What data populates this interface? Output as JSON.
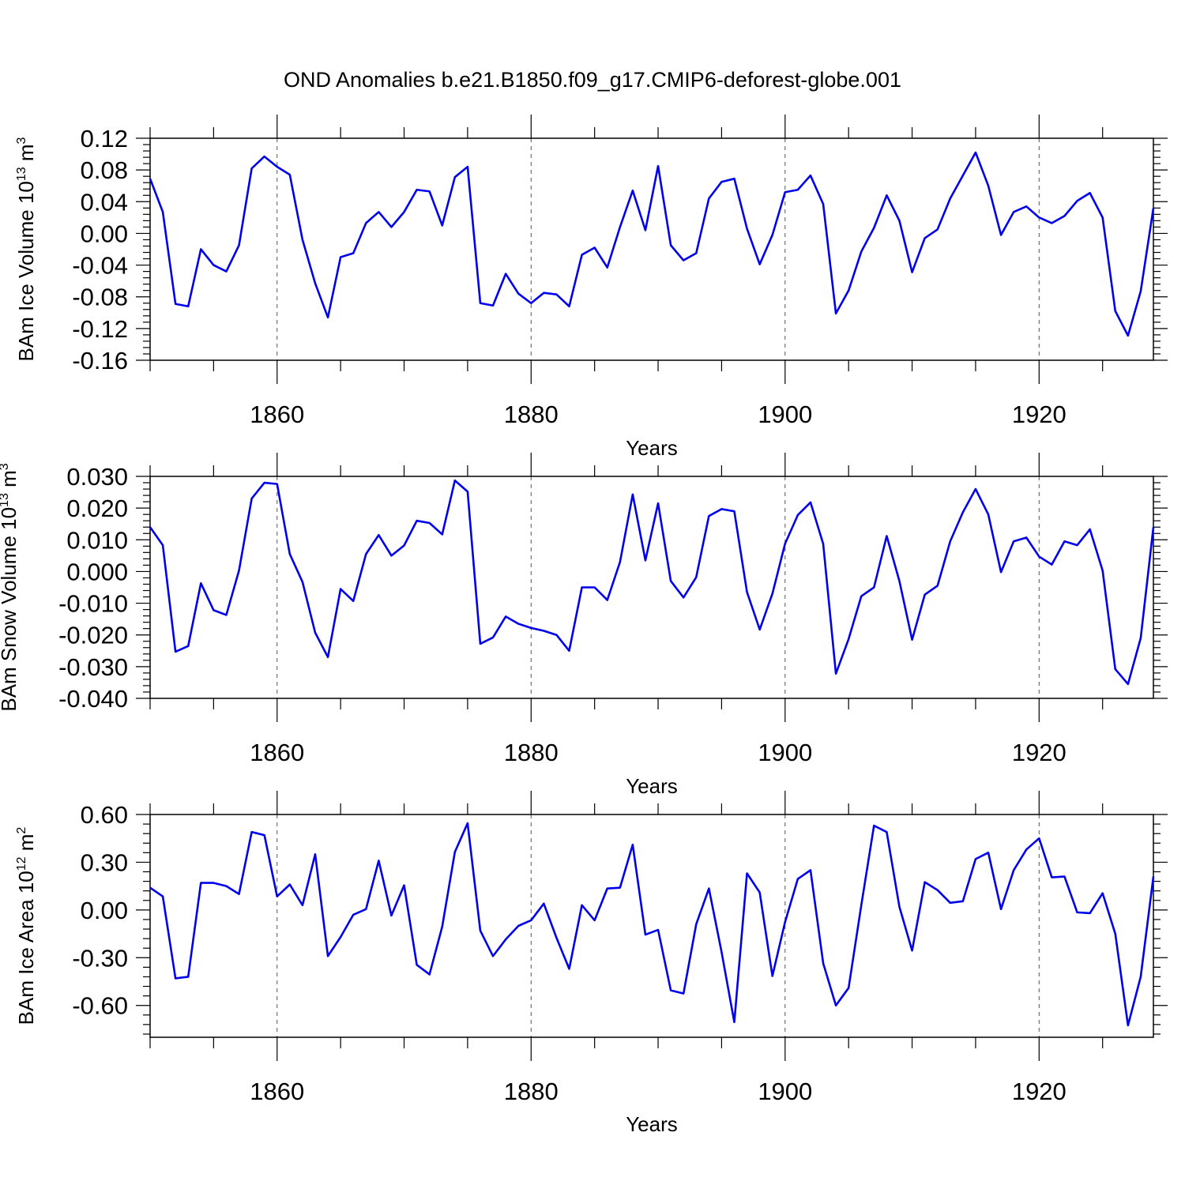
{
  "title": "OND Anomalies b.e21.B1850.f09_g17.CMIP6-deforest-globe.001",
  "chart_data": [
    {
      "type": "line",
      "ylabel": "BAm Ice Volume 10",
      "ylabel_exp": "13",
      "ylabel_unit": " m",
      "ylabel_unit_exp": "3",
      "xlabel": "Years",
      "xlim": [
        1850,
        1929
      ],
      "ylim": [
        -0.16,
        0.12
      ],
      "yticks": [
        0.12,
        0.08,
        0.04,
        0.0,
        -0.04,
        -0.08,
        -0.12,
        -0.16
      ],
      "ytick_labels": [
        "0.12",
        "0.08",
        "0.04",
        "0.00",
        "-0.04",
        "-0.08",
        "-0.12",
        "-0.16"
      ],
      "xticks": [
        1860,
        1880,
        1900,
        1920
      ],
      "xtick_labels": [
        "1860",
        "1880",
        "1900",
        "1920"
      ],
      "series": [
        {
          "name": "BAm Ice Volume",
          "color": "#0000ee",
          "x_start": 1850,
          "values": [
            0.069,
            0.027,
            -0.089,
            -0.092,
            -0.02,
            -0.04,
            -0.048,
            -0.015,
            0.082,
            0.097,
            0.084,
            0.074,
            -0.008,
            -0.063,
            -0.106,
            -0.03,
            -0.025,
            0.013,
            0.027,
            0.008,
            0.027,
            0.055,
            0.053,
            0.01,
            0.071,
            0.084,
            -0.088,
            -0.091,
            -0.051,
            -0.076,
            -0.088,
            -0.075,
            -0.077,
            -0.092,
            -0.027,
            -0.018,
            -0.043,
            0.008,
            0.054,
            0.004,
            0.085,
            -0.015,
            -0.034,
            -0.025,
            0.044,
            0.065,
            0.069,
            0.006,
            -0.039,
            -0.002,
            0.052,
            0.055,
            0.073,
            0.037,
            -0.101,
            -0.072,
            -0.023,
            0.007,
            0.048,
            0.016,
            -0.049,
            -0.006,
            0.005,
            0.044,
            0.073,
            0.102,
            0.06,
            -0.002,
            0.027,
            0.034,
            0.02,
            0.013,
            0.022,
            0.041,
            0.051,
            0.02,
            -0.098,
            -0.129,
            -0.073,
            0.032
          ]
        }
      ]
    },
    {
      "type": "line",
      "ylabel": "BAm Snow Volume 10",
      "ylabel_exp": "13",
      "ylabel_unit": " m",
      "ylabel_unit_exp": "3",
      "xlabel": "Years",
      "xlim": [
        1850,
        1929
      ],
      "ylim": [
        -0.04,
        0.03
      ],
      "yticks": [
        0.03,
        0.02,
        0.01,
        0.0,
        -0.01,
        -0.02,
        -0.03,
        -0.04
      ],
      "ytick_labels": [
        "0.030",
        "0.020",
        "0.010",
        "0.000",
        "-0.010",
        "-0.020",
        "-0.030",
        "-0.040"
      ],
      "xticks": [
        1860,
        1880,
        1900,
        1920
      ],
      "xtick_labels": [
        "1860",
        "1880",
        "1900",
        "1920"
      ],
      "series": [
        {
          "name": "BAm Snow Volume",
          "color": "#0000ee",
          "x_start": 1850,
          "values": [
            0.014,
            0.0083,
            -0.0253,
            -0.0235,
            -0.0037,
            -0.0122,
            -0.0137,
            0.0003,
            0.023,
            0.028,
            0.0276,
            0.0055,
            -0.0033,
            -0.0193,
            -0.027,
            -0.0055,
            -0.0093,
            0.0055,
            0.0115,
            0.005,
            0.0082,
            0.016,
            0.0153,
            0.0117,
            0.0287,
            0.0252,
            -0.0228,
            -0.0208,
            -0.0142,
            -0.0165,
            -0.0178,
            -0.0187,
            -0.02,
            -0.025,
            -0.005,
            -0.005,
            -0.009,
            0.003,
            0.0243,
            0.0035,
            0.0215,
            -0.003,
            -0.0082,
            -0.0018,
            0.0175,
            0.0197,
            0.019,
            -0.0065,
            -0.0183,
            -0.007,
            0.0088,
            0.0178,
            0.0218,
            0.0087,
            -0.0322,
            -0.0213,
            -0.0078,
            -0.005,
            0.0112,
            -0.003,
            -0.0215,
            -0.0073,
            -0.0045,
            0.0095,
            0.0187,
            0.026,
            0.018,
            -0.0002,
            0.0095,
            0.0107,
            0.0047,
            0.0022,
            0.0095,
            0.0083,
            0.0133,
            0.0003,
            -0.0308,
            -0.0355,
            -0.021,
            0.014
          ]
        }
      ]
    },
    {
      "type": "line",
      "ylabel": "BAm Ice Area 10",
      "ylabel_exp": "12",
      "ylabel_unit": " m",
      "ylabel_unit_exp": "2",
      "xlabel": "Years",
      "xlim": [
        1850,
        1929
      ],
      "ylim": [
        -0.8,
        0.6
      ],
      "yticks": [
        0.6,
        0.3,
        0.0,
        -0.3,
        -0.6
      ],
      "ytick_labels": [
        "0.60",
        "0.30",
        "0.00",
        "-0.30",
        "-0.60"
      ],
      "xticks": [
        1860,
        1880,
        1900,
        1920
      ],
      "xtick_labels": [
        "1860",
        "1880",
        "1900",
        "1920"
      ],
      "series": [
        {
          "name": "BAm Ice Area",
          "color": "#0000ee",
          "x_start": 1850,
          "values": [
            0.14,
            0.085,
            -0.43,
            -0.42,
            0.17,
            0.17,
            0.15,
            0.1,
            0.49,
            0.47,
            0.085,
            0.16,
            0.03,
            0.35,
            -0.29,
            -0.17,
            -0.03,
            0.005,
            0.31,
            -0.035,
            0.155,
            -0.345,
            -0.405,
            -0.105,
            0.365,
            0.545,
            -0.13,
            -0.29,
            -0.185,
            -0.1,
            -0.065,
            0.04,
            -0.175,
            -0.37,
            0.03,
            -0.065,
            0.135,
            0.14,
            0.41,
            -0.155,
            -0.125,
            -0.505,
            -0.525,
            -0.09,
            0.135,
            -0.265,
            -0.705,
            0.23,
            0.11,
            -0.415,
            -0.075,
            0.195,
            0.25,
            -0.335,
            -0.6,
            -0.49,
            0.03,
            0.53,
            0.49,
            0.02,
            -0.255,
            0.175,
            0.125,
            0.045,
            0.055,
            0.32,
            0.36,
            0.005,
            0.25,
            0.38,
            0.45,
            0.205,
            0.21,
            -0.015,
            -0.02,
            0.105,
            -0.15,
            -0.725,
            -0.42,
            0.21
          ]
        }
      ]
    }
  ]
}
